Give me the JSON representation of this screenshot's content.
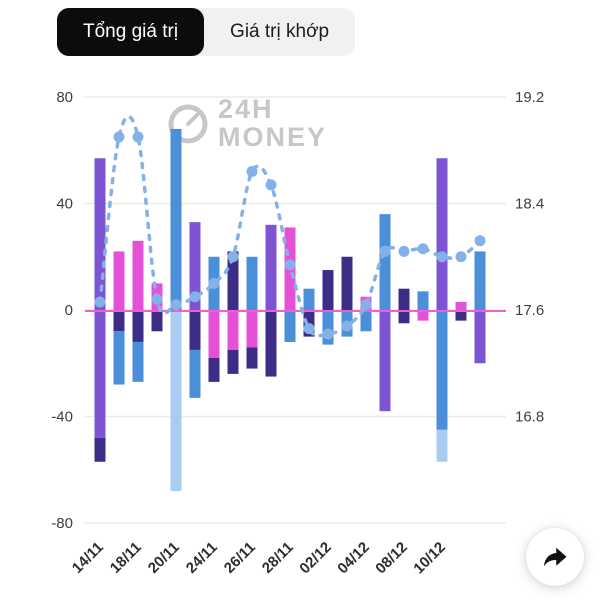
{
  "tabs": [
    {
      "label": "Tổng giá trị",
      "selected": true
    },
    {
      "label": "Giá trị khớp",
      "selected": false
    }
  ],
  "watermark": {
    "line1": "24H",
    "line2": "MONEY"
  },
  "share_button": {
    "icon": "share-arrow-icon"
  },
  "chart_data": {
    "type": "bar",
    "subtype": "stacked-bar-with-line",
    "title": "",
    "xlabel": "",
    "ylabel_left": "",
    "ylabel_right": "",
    "left_axis": {
      "ticks": [
        80,
        40,
        0,
        -40,
        -80
      ],
      "range": [
        -80,
        80
      ]
    },
    "right_axis": {
      "ticks": [
        19.2,
        18.4,
        17.6,
        16.8
      ],
      "map": "price = 17.6 + value * 0.02"
    },
    "x_labels": [
      "14/11",
      "18/11",
      "20/11",
      "24/11",
      "26/11",
      "28/11",
      "02/12",
      "04/12",
      "08/12",
      "10/12"
    ],
    "label_every_n_bars": 2,
    "grid": true,
    "colors": {
      "purple": "#7d55d2",
      "dark": "#3e2d87",
      "pink": "#e551d6",
      "blue": "#4b8fd8",
      "lightblue": "#a9cdf0",
      "line": "#84b1e7",
      "zero_line": "#ee5fd6",
      "grid": "#ebebeb",
      "axis_text": "#3f3f3f",
      "x_label_text": "#2e2e2e"
    },
    "bars": [
      {
        "segments": [
          {
            "from": 0,
            "to": 57,
            "color": "purple"
          },
          {
            "from": -48,
            "to": 0,
            "color": "purple"
          },
          {
            "from": -57,
            "to": -48,
            "color": "dark"
          }
        ]
      },
      {
        "segments": [
          {
            "from": 0,
            "to": 22,
            "color": "pink"
          },
          {
            "from": -8,
            "to": 0,
            "color": "dark"
          },
          {
            "from": -28,
            "to": -8,
            "color": "blue"
          }
        ]
      },
      {
        "segments": [
          {
            "from": 0,
            "to": 26,
            "color": "pink"
          },
          {
            "from": -12,
            "to": 0,
            "color": "dark"
          },
          {
            "from": -27,
            "to": -12,
            "color": "blue"
          }
        ]
      },
      {
        "segments": [
          {
            "from": 0,
            "to": 10,
            "color": "pink"
          },
          {
            "from": -8,
            "to": 0,
            "color": "dark"
          }
        ]
      },
      {
        "segments": [
          {
            "from": 0,
            "to": 68,
            "color": "blue"
          },
          {
            "from": -68,
            "to": 0,
            "color": "lightblue"
          }
        ]
      },
      {
        "segments": [
          {
            "from": 0,
            "to": 33,
            "color": "purple"
          },
          {
            "from": -15,
            "to": 0,
            "color": "dark"
          },
          {
            "from": -33,
            "to": -15,
            "color": "blue"
          }
        ]
      },
      {
        "segments": [
          {
            "from": 0,
            "to": 20,
            "color": "blue"
          },
          {
            "from": -18,
            "to": 0,
            "color": "pink"
          },
          {
            "from": -27,
            "to": -18,
            "color": "dark"
          }
        ]
      },
      {
        "segments": [
          {
            "from": 0,
            "to": 22,
            "color": "dark"
          },
          {
            "from": -15,
            "to": 0,
            "color": "pink"
          },
          {
            "from": -24,
            "to": -15,
            "color": "dark"
          }
        ]
      },
      {
        "segments": [
          {
            "from": 0,
            "to": 20,
            "color": "blue"
          },
          {
            "from": -14,
            "to": 0,
            "color": "pink"
          },
          {
            "from": -22,
            "to": -14,
            "color": "dark"
          }
        ]
      },
      {
        "segments": [
          {
            "from": 0,
            "to": 32,
            "color": "purple"
          },
          {
            "from": -25,
            "to": 0,
            "color": "dark"
          }
        ]
      },
      {
        "segments": [
          {
            "from": 0,
            "to": 31,
            "color": "pink"
          },
          {
            "from": -12,
            "to": 0,
            "color": "blue"
          }
        ]
      },
      {
        "segments": [
          {
            "from": 0,
            "to": 8,
            "color": "blue"
          },
          {
            "from": -10,
            "to": 0,
            "color": "dark"
          }
        ]
      },
      {
        "segments": [
          {
            "from": 0,
            "to": 15,
            "color": "dark"
          },
          {
            "from": -13,
            "to": 0,
            "color": "blue"
          }
        ]
      },
      {
        "segments": [
          {
            "from": 0,
            "to": 20,
            "color": "dark"
          },
          {
            "from": -10,
            "to": 0,
            "color": "blue"
          }
        ]
      },
      {
        "segments": [
          {
            "from": 0,
            "to": 5,
            "color": "pink"
          },
          {
            "from": -8,
            "to": 0,
            "color": "blue"
          }
        ]
      },
      {
        "segments": [
          {
            "from": 0,
            "to": 36,
            "color": "blue"
          },
          {
            "from": -38,
            "to": 0,
            "color": "purple"
          }
        ]
      },
      {
        "segments": [
          {
            "from": 0,
            "to": 8,
            "color": "dark"
          },
          {
            "from": -5,
            "to": 0,
            "color": "dark"
          }
        ]
      },
      {
        "segments": [
          {
            "from": 0,
            "to": 7,
            "color": "blue"
          },
          {
            "from": -4,
            "to": 0,
            "color": "pink"
          }
        ]
      },
      {
        "segments": [
          {
            "from": 0,
            "to": 57,
            "color": "purple"
          },
          {
            "from": -45,
            "to": 0,
            "color": "blue"
          },
          {
            "from": -57,
            "to": -45,
            "color": "lightblue"
          }
        ]
      },
      {
        "segments": [
          {
            "from": 0,
            "to": 3,
            "color": "pink"
          },
          {
            "from": -4,
            "to": 0,
            "color": "dark"
          }
        ]
      },
      {
        "segments": [
          {
            "from": 0,
            "to": 22,
            "color": "blue"
          },
          {
            "from": -20,
            "to": 0,
            "color": "purple"
          }
        ]
      }
    ],
    "line_series": {
      "name": "price-line",
      "values_left_axis_units": [
        3,
        65,
        65,
        4,
        2,
        5,
        10,
        20,
        52,
        47,
        17,
        -7,
        -9,
        -6,
        2,
        22,
        22,
        23,
        20,
        20,
        26
      ],
      "style": "dashed-with-markers"
    },
    "zero_reference_line": 0
  }
}
